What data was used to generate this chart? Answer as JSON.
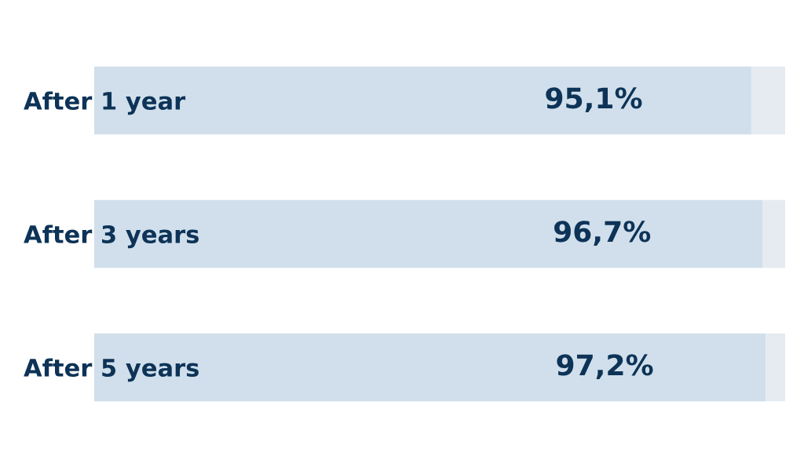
{
  "chart_data": {
    "type": "bar",
    "orientation": "horizontal",
    "stacked": true,
    "categories": [
      "After 1 year",
      "After 3 years",
      "After 5 years"
    ],
    "series": [
      {
        "color": "#d0dfeb",
        "values": [
          95.1,
          96.7,
          97.2
        ],
        "value_labels": [
          "95,1%",
          "96,7%",
          "97,2%"
        ]
      },
      {
        "color": "#e5ebf1",
        "values": [
          4.9,
          3.3,
          2.8
        ]
      }
    ],
    "xlim": [
      0,
      100
    ],
    "tick_labels": "y",
    "grid": false
  }
}
